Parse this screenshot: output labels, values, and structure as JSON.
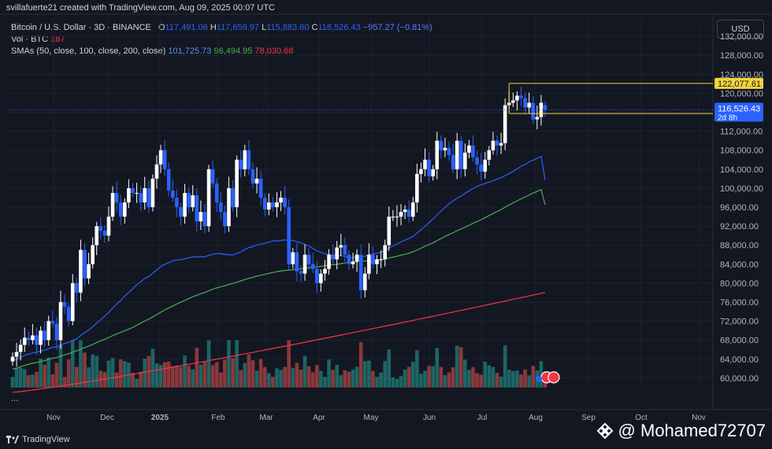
{
  "header": {
    "credit": "svillafuerte21 created with TradingView.com, Aug 09, 2025 00:07 UTC",
    "title": "Bitcoin / U.S. Dollar · 3D · BINANCE",
    "ohlc": {
      "o_label": "O",
      "o": "117,491.06",
      "h_label": "H",
      "h": "117,659.97",
      "l_label": "L",
      "l": "115,883.60",
      "c_label": "C",
      "c": "116,526.43",
      "change": "−957.27 (−0.81%)"
    },
    "vol_label": "Vol · BTC",
    "vol_value": "187",
    "sma_label": "SMAs (50, close, 100, close, 200, close)",
    "sma50": "101,725.73",
    "sma100": "96,494.95",
    "sma200": "78,030.68"
  },
  "currency_button": "USD",
  "more_dots": "...",
  "brand": "TradingView",
  "watermark": "@ Mohamed72707",
  "colors": {
    "bg": "#131722",
    "up": "#ffffff",
    "down": "#2962ff",
    "sma50": "#2962ff",
    "sma100": "#4caf50",
    "sma200": "#f23645",
    "level": "#f0d43a",
    "vol_up": "#26a69a",
    "vol_down": "#ef5350"
  },
  "chart_data": {
    "type": "candlestick",
    "yticks": [
      60000,
      64000,
      68000,
      72000,
      76000,
      80000,
      84000,
      88000,
      92000,
      96000,
      100000,
      104000,
      108000,
      112000,
      116000,
      120000,
      124000,
      128000,
      132000
    ],
    "ytick_labels": [
      "60,000.00",
      "64,000.00",
      "68,000.00",
      "72,000.00",
      "76,000.00",
      "80,000.00",
      "84,000.00",
      "88,000.00",
      "92,000.00",
      "96,000.00",
      "100,000.00",
      "104,000.00",
      "108,000.00",
      "112,000.00",
      "116,000.00",
      "120,000.00",
      "124,000.00",
      "128,000.00",
      "132,000.00"
    ],
    "ylim": [
      58000,
      136000
    ],
    "xticks": [
      "Nov",
      "Dec",
      "2025",
      "Feb",
      "Mar",
      "Apr",
      "May",
      "Jun",
      "Jul",
      "Aug",
      "Sep",
      "Oct",
      "Nov"
    ],
    "price_labels": {
      "resistance": "122,077.61",
      "support": "115,724.12",
      "last": "116,526.43",
      "countdown": "2d 8h"
    },
    "levels": {
      "resistance": 122077.61,
      "support": 115724.12,
      "last": 116526.43
    },
    "closes": [
      64500,
      65500,
      67000,
      68500,
      68000,
      69000,
      67000,
      70000,
      68000,
      72000,
      71500,
      68000,
      76000,
      75000,
      72000,
      80000,
      78000,
      87000,
      81000,
      84000,
      88000,
      92000,
      91000,
      90000,
      94000,
      99000,
      97000,
      94000,
      97000,
      100000,
      99000,
      99000,
      97000,
      100000,
      96000,
      102000,
      105000,
      108000,
      104000,
      99500,
      98000,
      96000,
      94000,
      99000,
      96000,
      98500,
      93000,
      95000,
      92000,
      104000,
      101000,
      97000,
      95000,
      92000,
      100000,
      96000,
      106000,
      104000,
      108000,
      104000,
      101000,
      102000,
      98000,
      95500,
      97000,
      96000,
      97000,
      98000,
      96000,
      84000,
      86500,
      82500,
      82000,
      86000,
      84000,
      83000,
      80000,
      82000,
      83000,
      86000,
      85000,
      87500,
      88000,
      86000,
      84000,
      84500,
      86000,
      78500,
      82000,
      86000,
      84000,
      85000,
      85000,
      88000,
      94000,
      94000,
      94000,
      95000,
      95500,
      94000,
      97000,
      103000,
      104000,
      106000,
      102500,
      104000,
      110000,
      108000,
      108500,
      107000,
      104000,
      110000,
      104000,
      107500,
      109000,
      106500,
      105000,
      103500,
      106000,
      108000,
      110000,
      109000,
      109500,
      117500,
      118000,
      118500,
      119500,
      119000,
      117000,
      118000,
      114500,
      115000,
      118000,
      116526
    ],
    "opens": [
      63500,
      64500,
      65500,
      67000,
      68500,
      68000,
      69000,
      67000,
      70000,
      68000,
      72000,
      71500,
      68000,
      76000,
      75000,
      72000,
      80000,
      78000,
      87000,
      81000,
      84000,
      88000,
      92000,
      91000,
      90000,
      94000,
      99000,
      97000,
      94000,
      97000,
      100000,
      99000,
      99000,
      97000,
      100000,
      96000,
      102000,
      105000,
      108000,
      104000,
      99500,
      98000,
      96000,
      94000,
      99000,
      96000,
      98500,
      93000,
      95000,
      92000,
      104000,
      101000,
      97000,
      95000,
      92000,
      100000,
      96000,
      106000,
      104000,
      108000,
      104000,
      101000,
      102000,
      98000,
      95500,
      97000,
      96000,
      97000,
      98000,
      96000,
      84000,
      86500,
      82500,
      82000,
      86000,
      84000,
      83000,
      80000,
      82000,
      83000,
      86000,
      85000,
      87500,
      88000,
      86000,
      84000,
      84500,
      86000,
      78500,
      82000,
      86000,
      84000,
      85000,
      85000,
      88000,
      94000,
      94000,
      94000,
      95000,
      95500,
      94000,
      97000,
      103000,
      104000,
      106000,
      102500,
      104000,
      110000,
      108000,
      108500,
      107000,
      104000,
      110000,
      104000,
      107500,
      109000,
      106500,
      105000,
      103500,
      106000,
      108000,
      110000,
      109000,
      109500,
      117500,
      118000,
      118500,
      119500,
      119000,
      117000,
      118000,
      114500,
      115000,
      117491
    ],
    "sma50": {
      "start": 63000,
      "end": 101725.73
    },
    "sma100": {
      "start": 61000,
      "end": 96494.95
    },
    "sma200": {
      "start": 57000,
      "end": 78030.68
    }
  }
}
